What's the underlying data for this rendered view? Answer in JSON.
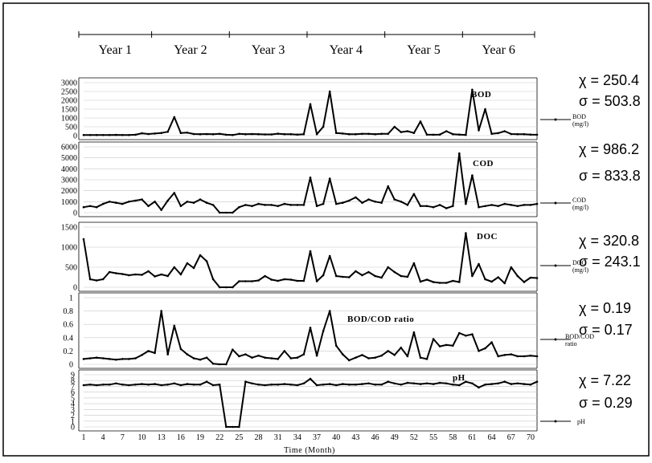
{
  "chart_data": {
    "type": "line",
    "year_labels": [
      "Year 1",
      "Year 2",
      "Year 3",
      "Year 4",
      "Year 5",
      "Year 6"
    ],
    "year_boundaries": [
      1,
      11.5,
      23.5,
      35.5,
      47.5,
      59.5,
      70
    ],
    "xlabel": "Time (Month)",
    "x_ticks": [
      1,
      4,
      7,
      10,
      13,
      16,
      19,
      22,
      25,
      28,
      31,
      34,
      37,
      40,
      43,
      46,
      49,
      52,
      55,
      58,
      61,
      64,
      67,
      70
    ],
    "x_range": [
      1,
      71
    ],
    "panels": [
      {
        "id": "bod",
        "inline_label": "BOD",
        "legend_label": [
          "BOD",
          "(mg/l)"
        ],
        "mean_text": "χ = 250.4",
        "sd_text": "σ = 503.8",
        "ylim": [
          0,
          3000
        ],
        "yticks": [
          0,
          500,
          1000,
          1500,
          2000,
          2500,
          3000
        ],
        "values": [
          30,
          30,
          30,
          30,
          30,
          40,
          30,
          30,
          50,
          130,
          90,
          120,
          150,
          220,
          1050,
          150,
          170,
          90,
          80,
          90,
          80,
          100,
          50,
          30,
          100,
          80,
          90,
          80,
          70,
          70,
          110,
          80,
          80,
          60,
          80,
          1780,
          80,
          500,
          2500,
          150,
          120,
          80,
          80,
          100,
          100,
          80,
          100,
          100,
          500,
          200,
          250,
          150,
          800,
          60,
          50,
          60,
          250,
          80,
          60,
          40,
          2600,
          300,
          1500,
          100,
          140,
          250,
          90,
          80,
          80,
          60,
          50
        ]
      },
      {
        "id": "cod",
        "inline_label": "COD",
        "legend_label": [
          "COD",
          "(mg/l)"
        ],
        "mean_text": "χ = 986.2",
        "sd_text": "σ = 833.8",
        "ylim": [
          0,
          6000
        ],
        "yticks": [
          0,
          1000,
          2000,
          3000,
          4000,
          5000,
          6000
        ],
        "values": [
          500,
          600,
          500,
          800,
          1000,
          900,
          800,
          1000,
          1100,
          1200,
          600,
          1000,
          250,
          1100,
          1800,
          600,
          1000,
          900,
          1200,
          900,
          700,
          0,
          0,
          0,
          500,
          700,
          600,
          800,
          700,
          700,
          600,
          800,
          700,
          700,
          700,
          3200,
          600,
          800,
          3100,
          800,
          900,
          1100,
          1400,
          900,
          1200,
          1000,
          900,
          2400,
          1200,
          1000,
          700,
          1700,
          600,
          600,
          500,
          700,
          400,
          600,
          5400,
          800,
          3400,
          500,
          600,
          700,
          600,
          800,
          700,
          600,
          700,
          700,
          800
        ]
      },
      {
        "id": "doc",
        "inline_label": "DOC",
        "legend_label": [
          "DOC",
          "(mg/l)"
        ],
        "mean_text": "χ = 320.8",
        "sd_text": "σ = 243.1",
        "ylim": [
          0,
          1500
        ],
        "yticks": [
          0,
          500,
          1000,
          1500
        ],
        "values": [
          1200,
          200,
          170,
          200,
          380,
          350,
          330,
          300,
          320,
          310,
          400,
          270,
          320,
          280,
          500,
          320,
          600,
          480,
          800,
          650,
          200,
          0,
          0,
          0,
          150,
          150,
          150,
          170,
          280,
          190,
          160,
          200,
          190,
          160,
          160,
          900,
          150,
          300,
          780,
          280,
          260,
          250,
          400,
          300,
          380,
          280,
          240,
          500,
          380,
          280,
          260,
          600,
          140,
          190,
          130,
          110,
          110,
          160,
          130,
          1350,
          280,
          580,
          200,
          140,
          250,
          100,
          500,
          280,
          130,
          240,
          230
        ]
      },
      {
        "id": "ratio",
        "inline_label": "BOD/COD ratio",
        "legend_label": [
          "BOD/COD",
          "ratio"
        ],
        "mean_text": "χ = 0.19",
        "sd_text": "σ = 0.17",
        "ylim": [
          0,
          1
        ],
        "yticks": [
          0,
          0.2,
          0.4,
          0.6,
          0.8,
          1
        ],
        "values": [
          0.08,
          0.09,
          0.1,
          0.09,
          0.08,
          0.07,
          0.08,
          0.08,
          0.09,
          0.14,
          0.2,
          0.17,
          0.8,
          0.15,
          0.58,
          0.23,
          0.15,
          0.09,
          0.07,
          0.1,
          0.01,
          0.0,
          0.0,
          0.22,
          0.12,
          0.15,
          0.1,
          0.13,
          0.1,
          0.09,
          0.08,
          0.2,
          0.09,
          0.1,
          0.15,
          0.55,
          0.13,
          0.5,
          0.8,
          0.28,
          0.15,
          0.06,
          0.1,
          0.14,
          0.09,
          0.1,
          0.13,
          0.2,
          0.14,
          0.25,
          0.12,
          0.48,
          0.1,
          0.08,
          0.38,
          0.27,
          0.29,
          0.28,
          0.47,
          0.43,
          0.45,
          0.2,
          0.24,
          0.33,
          0.12,
          0.14,
          0.15,
          0.12,
          0.12,
          0.13,
          0.12
        ]
      },
      {
        "id": "ph",
        "inline_label": "pH",
        "legend_label": [
          "pH"
        ],
        "mean_text": "χ = 7.22",
        "sd_text": "σ = 0.29",
        "ylim": [
          0,
          9
        ],
        "yticks": [
          0,
          1,
          2,
          3,
          4,
          5,
          6,
          7,
          8,
          9
        ],
        "values": [
          7.2,
          7.3,
          7.2,
          7.3,
          7.3,
          7.5,
          7.3,
          7.2,
          7.3,
          7.4,
          7.3,
          7.4,
          7.2,
          7.3,
          7.5,
          7.2,
          7.4,
          7.3,
          7.3,
          7.8,
          7.2,
          7.3,
          0,
          0,
          0,
          7.8,
          7.5,
          7.3,
          7.2,
          7.3,
          7.3,
          7.4,
          7.3,
          7.2,
          7.5,
          8.3,
          7.2,
          7.3,
          7.4,
          7.2,
          7.4,
          7.3,
          7.3,
          7.4,
          7.5,
          7.3,
          7.3,
          7.8,
          7.5,
          7.3,
          7.6,
          7.5,
          7.4,
          7.5,
          7.4,
          7.6,
          7.5,
          7.3,
          7.2,
          7.8,
          7.5,
          6.8,
          7.3,
          7.4,
          7.5,
          7.8,
          7.4,
          7.5,
          7.4,
          7.3,
          7.8
        ]
      }
    ]
  }
}
